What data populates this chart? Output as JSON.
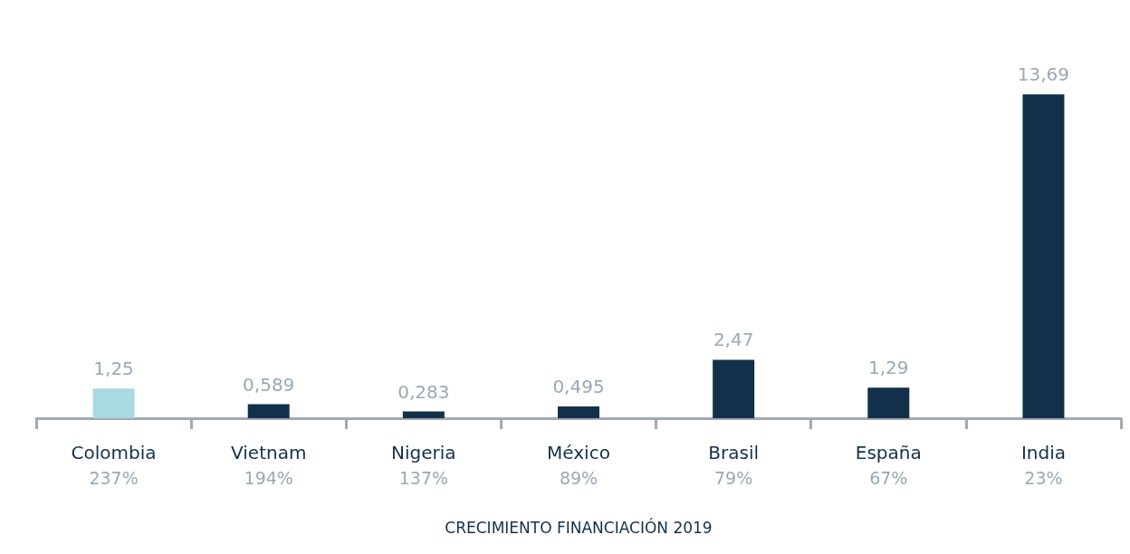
{
  "chart_data": {
    "type": "bar",
    "xlabel": "CRECIMIENTO FINANCIACIÓN 2019",
    "categories": [
      "Colombia",
      "Vietnam",
      "Nigeria",
      "México",
      "Brasil",
      "España",
      "India"
    ],
    "values": [
      1.25,
      0.589,
      0.283,
      0.495,
      2.47,
      1.29,
      13.69
    ],
    "colors": [
      "#a9d9e2",
      "#13304b",
      "#13304b",
      "#13304b",
      "#13304b",
      "#13304b",
      "#13304b"
    ],
    "value_labels": [
      "1,25",
      "0,589",
      "0,283",
      "0,495",
      "2,47",
      "1,29",
      "13,69"
    ],
    "annotations": [
      "237%",
      "194%",
      "137%",
      "89%",
      "79%",
      "67%",
      "23%"
    ]
  }
}
